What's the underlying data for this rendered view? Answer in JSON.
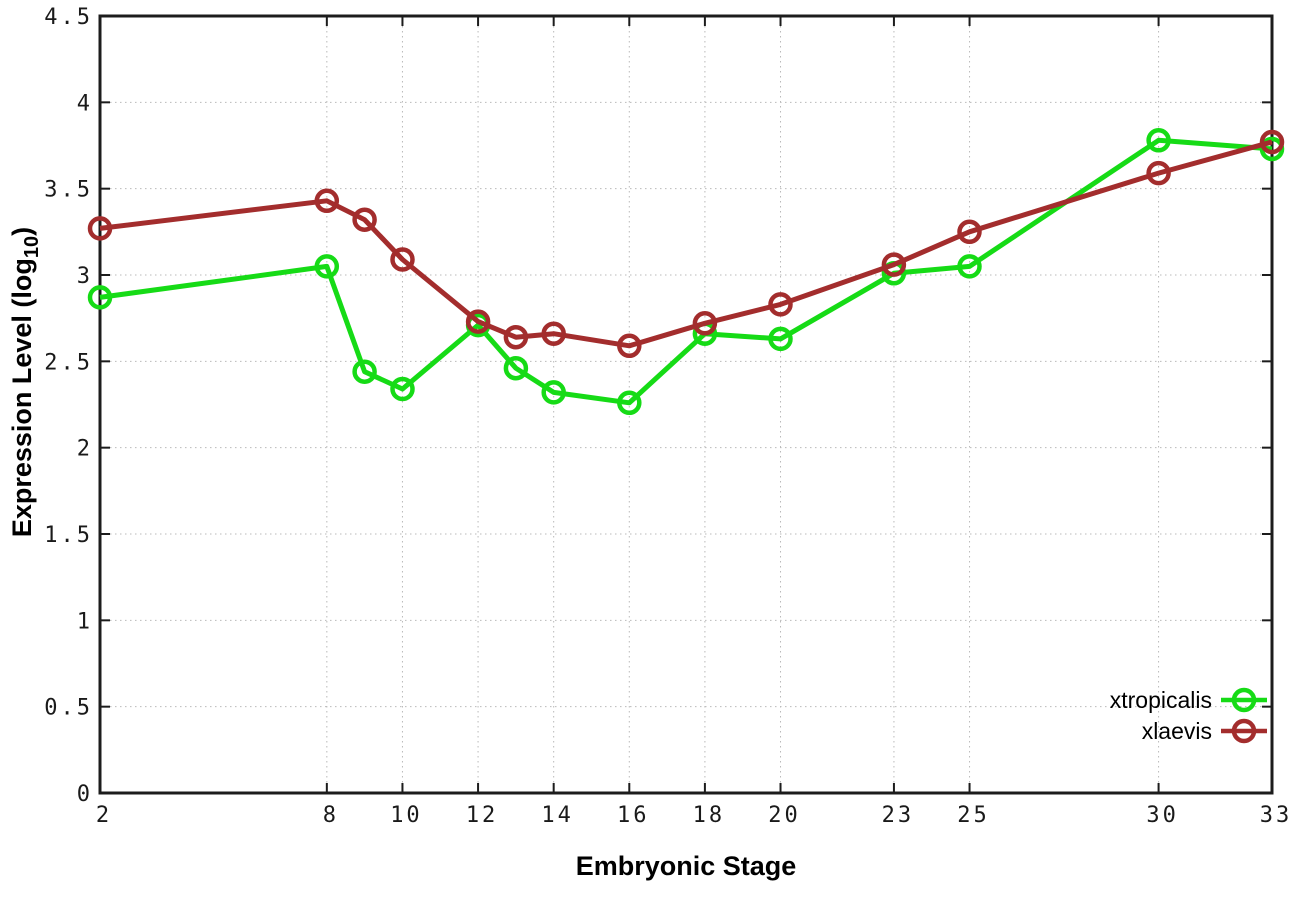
{
  "chart_data": {
    "type": "line",
    "title": "",
    "xlabel": "Embryonic Stage",
    "ylabel": "Expression Level (log10)",
    "ylabel_parts": [
      "Expression Level (log",
      {
        "sub": "10"
      },
      ")"
    ],
    "xlim": [
      2,
      33
    ],
    "ylim": [
      0,
      4.5
    ],
    "x_ticks": [
      2,
      8,
      10,
      12,
      14,
      16,
      18,
      20,
      23,
      25,
      30,
      33
    ],
    "y_ticks": [
      0,
      0.5,
      1,
      1.5,
      2,
      2.5,
      3,
      3.5,
      4,
      4.5
    ],
    "grid": true,
    "grid_style": "dotted",
    "legend_position": "inside-bottom-right",
    "x": [
      2,
      8,
      9,
      10,
      12,
      13,
      14,
      16,
      18,
      20,
      23,
      25,
      30,
      33
    ],
    "series": [
      {
        "name": "xtropicalis",
        "color": "#16db16",
        "marker": "open-circle",
        "values": [
          2.87,
          3.05,
          2.44,
          2.34,
          2.71,
          2.46,
          2.32,
          2.26,
          2.66,
          2.63,
          3.01,
          3.05,
          3.78,
          3.73
        ]
      },
      {
        "name": "xlaevis",
        "color": "#a32d2d",
        "marker": "open-circle",
        "values": [
          3.27,
          3.43,
          3.32,
          3.09,
          2.73,
          2.64,
          2.66,
          2.59,
          2.72,
          2.83,
          3.06,
          3.25,
          3.59,
          3.77
        ]
      }
    ]
  },
  "colors": {
    "background": "#ffffff",
    "axis": "#1c1c1c",
    "gridline": "#b9b9b9",
    "tick_label": "#1a1a1a",
    "series_xtropicalis": "#16db16",
    "series_xlaevis": "#a32d2d"
  }
}
